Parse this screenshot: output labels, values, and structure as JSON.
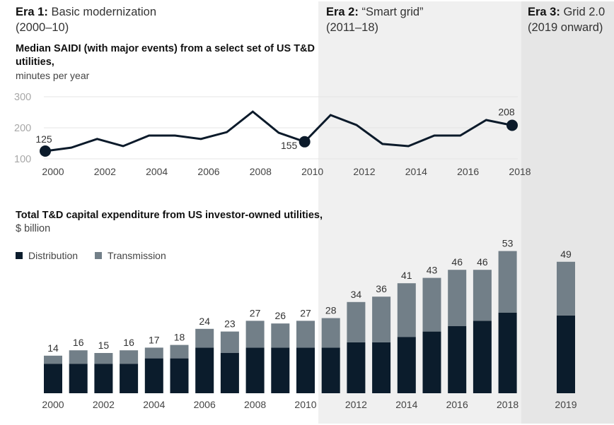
{
  "eras": [
    {
      "label": "Era 1:",
      "name": "Basic modernization",
      "period": "(2000–10)"
    },
    {
      "label": "Era 2:",
      "name": "“Smart grid”",
      "period": "(2011–18)"
    },
    {
      "label": "Era 3:",
      "name": "Grid 2.0",
      "period": "(2019 onward)"
    }
  ],
  "colors": {
    "line": "#0b1a2a",
    "distribution": "#0b1c2c",
    "transmission": "#727f88",
    "era2_bg": "#f0f0f0",
    "era3_bg": "#e6e6e6",
    "gridline": "#e4e4e4"
  },
  "chart_data": [
    {
      "type": "line",
      "title_bold": "Median SAIDI (with major events) from a select set of US T&D utilities,",
      "subtitle": "minutes per year",
      "x": [
        2000,
        2001,
        2002,
        2003,
        2004,
        2005,
        2006,
        2007,
        2008,
        2009,
        2010,
        2011,
        2012,
        2013,
        2014,
        2015,
        2016,
        2017,
        2018
      ],
      "values": [
        125,
        136,
        164,
        141,
        175,
        175,
        164,
        186,
        252,
        184,
        155,
        241,
        209,
        148,
        141,
        175,
        175,
        225,
        208
      ],
      "xticks": [
        "2000",
        "2002",
        "2004",
        "2006",
        "2008",
        "2010",
        "2012",
        "2014",
        "2016",
        "2018"
      ],
      "yticks": [
        "300",
        "200",
        "100"
      ],
      "ylim": [
        100,
        300
      ],
      "grid": true,
      "annotations": [
        {
          "year": 2000,
          "label": "125"
        },
        {
          "year": 2010,
          "label": "155"
        },
        {
          "year": 2018,
          "label": "208"
        }
      ]
    },
    {
      "type": "bar",
      "stacked": true,
      "title_bold": "Total T&D capital expenditure from US investor-owned utilities,",
      "subtitle": "$ billion",
      "categories": [
        "2000",
        "2001",
        "2002",
        "2003",
        "2004",
        "2005",
        "2006",
        "2007",
        "2008",
        "2009",
        "2010",
        "2011",
        "2012",
        "2013",
        "2014",
        "2015",
        "2016",
        "2017",
        "2018",
        "2019"
      ],
      "xticks": [
        "2000",
        "2002",
        "2004",
        "2006",
        "2008",
        "2010",
        "2012",
        "2014",
        "2016",
        "2018",
        "2019"
      ],
      "series": [
        {
          "name": "Distribution",
          "values": [
            11,
            11,
            11,
            11,
            13,
            13,
            17,
            15,
            17,
            17,
            17,
            17,
            19,
            19,
            21,
            23,
            25,
            27,
            30,
            29
          ]
        },
        {
          "name": "Transmission",
          "values": [
            3,
            5,
            4,
            5,
            4,
            5,
            7,
            8,
            10,
            9,
            10,
            11,
            15,
            17,
            20,
            20,
            21,
            19,
            23,
            20
          ]
        }
      ],
      "totals": [
        14,
        16,
        15,
        16,
        17,
        18,
        24,
        23,
        27,
        26,
        27,
        28,
        34,
        36,
        41,
        43,
        46,
        46,
        53,
        49
      ],
      "legend": [
        "Distribution",
        "Transmission"
      ],
      "legend_position": "top-left",
      "ylim": [
        0,
        55
      ]
    }
  ]
}
